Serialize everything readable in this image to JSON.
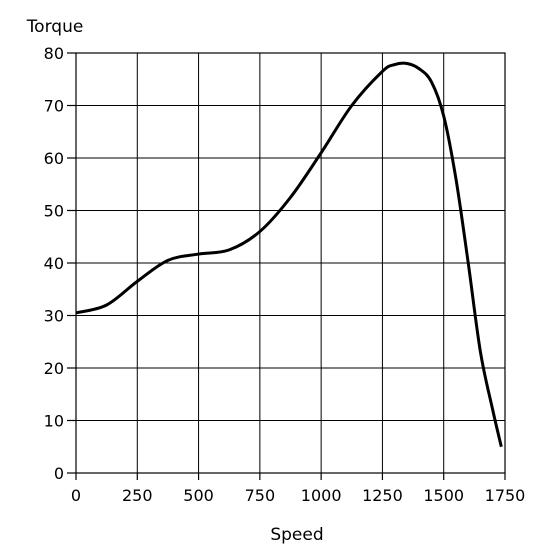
{
  "chart_data": {
    "type": "line",
    "title": "",
    "xlabel": "Speed",
    "ylabel": "Torque",
    "xlim": [
      0,
      1750
    ],
    "ylim": [
      0,
      80
    ],
    "xticks": [
      0,
      250,
      500,
      750,
      1000,
      1250,
      1500,
      1750
    ],
    "yticks": [
      0,
      10,
      20,
      30,
      40,
      50,
      60,
      70,
      80
    ],
    "grid": true,
    "legend": "none",
    "series": [
      {
        "color": "#000000",
        "x": [
          0,
          125,
          250,
          375,
          500,
          625,
          750,
          875,
          1000,
          1125,
          1250,
          1300,
          1350,
          1400,
          1450,
          1500,
          1550,
          1600,
          1650,
          1700,
          1735
        ],
        "y": [
          30.5,
          32,
          36.5,
          40.5,
          41.7,
          42.5,
          46,
          52.5,
          61,
          70,
          76.5,
          77.8,
          78,
          77,
          74.5,
          68,
          56,
          40,
          23,
          12,
          5
        ]
      }
    ]
  }
}
